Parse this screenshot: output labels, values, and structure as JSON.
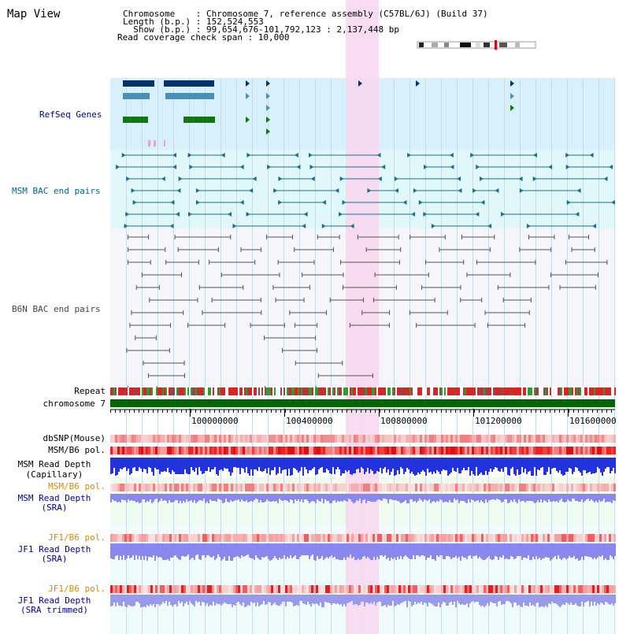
{
  "map_view": {
    "title": "Map View",
    "info": {
      "chromosome_line": "Chromosome    : Chromosome 7, reference assembly (C57BL/6J) (Build 37)",
      "length_line": "Length (b.p.) : 152,524,553",
      "show_line": "  Show (b.p.) : 99,654,676-101,792,123 : 2,137,448 bp",
      "span_line": "Read coverage check span : 10,000"
    },
    "tracks": {
      "refseq": "RefSeq Genes",
      "msm_bac": "MSM BAC end pairs",
      "b6n_bac": "B6N BAC end pairs",
      "repeat": "Repeat",
      "chromosome": "chromosome 7",
      "dbsnp": "dbSNP(Mouse)",
      "msm_b6_pol_1": "MSM/B6 pol.",
      "msm_depth_cap_1": "MSM Read Depth",
      "msm_depth_cap_2": "(Capillary)",
      "msm_b6_pol_2": "MSM/B6 pol.",
      "msm_depth_sra_1": "MSM Read Depth",
      "msm_depth_sra_2": "(SRA)",
      "jf1_b6_pol_1": "JF1/B6 pol.",
      "jf1_depth_sra_1": "JF1 Read Depth",
      "jf1_depth_sra_2": "(SRA)",
      "jf1_b6_pol_2": "JF1/B6 pol.",
      "jf1_depth_trim_1": "JF1 Read Depth",
      "jf1_depth_trim_2": "(SRA trimmed)"
    },
    "ruler": [
      "100000000",
      "100400000",
      "100800000",
      "101200000",
      "101600000"
    ],
    "colors": {
      "refseq_label": "#000099",
      "msm_label": "#006688",
      "b6n_label": "#444444",
      "pol_label": "#dd8800",
      "depth_label": "#000099",
      "highlight": "#f8d8f0",
      "chrom_bar": "#006600"
    }
  }
}
